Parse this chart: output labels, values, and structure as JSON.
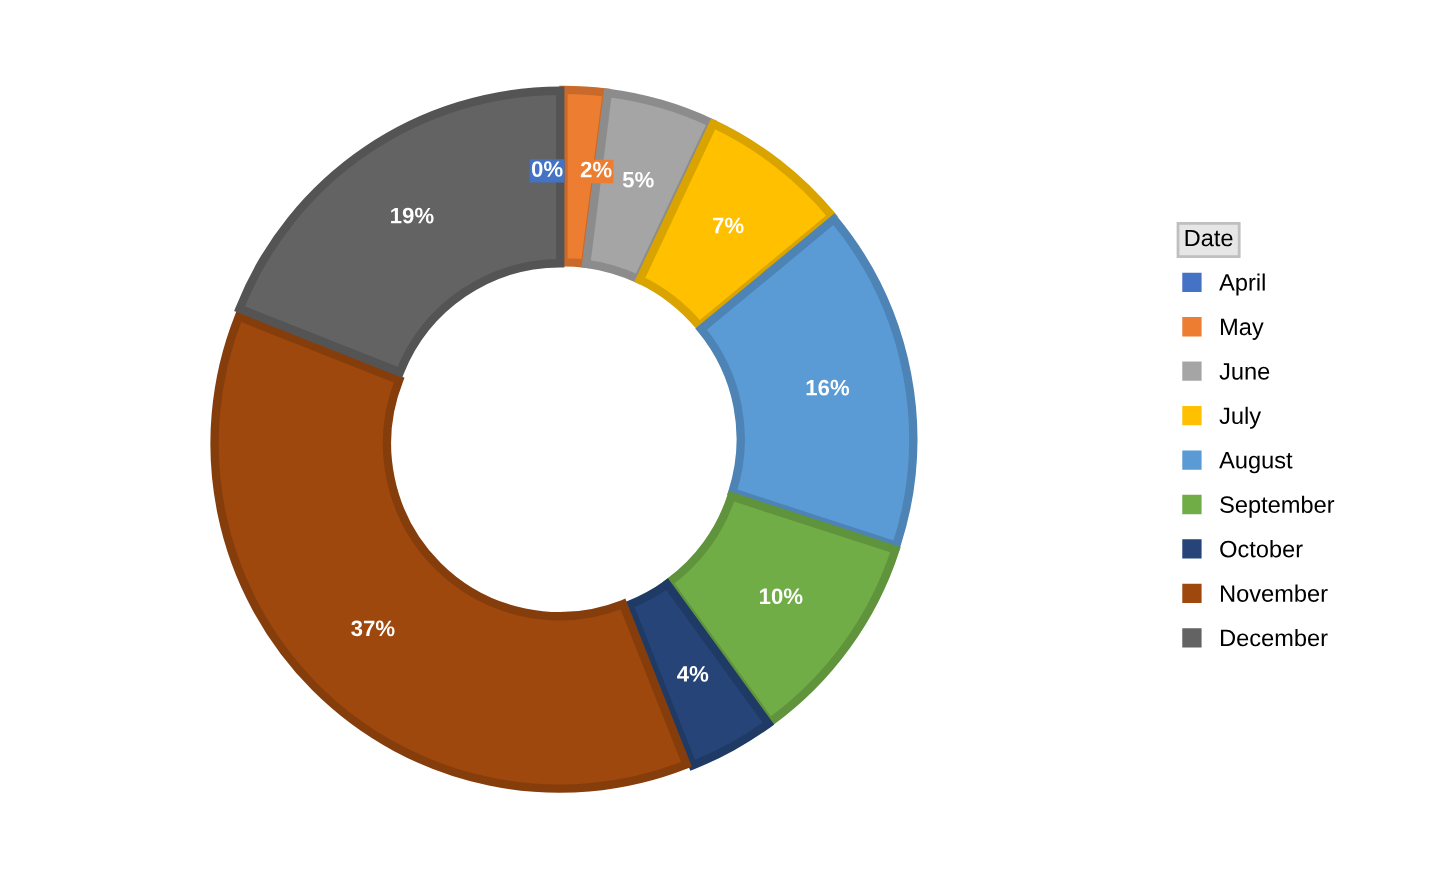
{
  "chart_data": {
    "type": "donut",
    "legend_title": "Date",
    "legend": "right",
    "value_labels": [
      "0%",
      "2%",
      "5%",
      "7%",
      "16%",
      "10%",
      "4%",
      "37%",
      "19%"
    ],
    "categories": [
      "April",
      "May",
      "June",
      "July",
      "August",
      "September",
      "October",
      "November",
      "December"
    ],
    "values": [
      0,
      2,
      5,
      7,
      16,
      10,
      4,
      37,
      19
    ],
    "colors": [
      "#4472c4",
      "#ed7d31",
      "#a5a5a5",
      "#ffc000",
      "#5b9bd5",
      "#70ad47",
      "#264478",
      "#9e480e",
      "#636363"
    ]
  }
}
